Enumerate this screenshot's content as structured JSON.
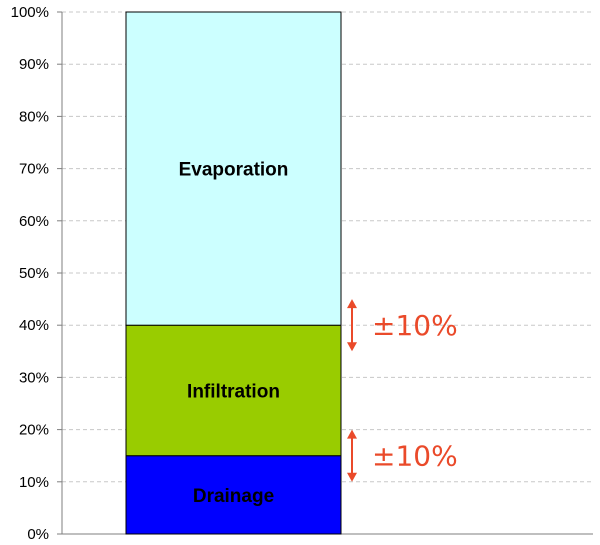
{
  "chart_data": {
    "type": "bar",
    "stacked": true,
    "categories": [
      ""
    ],
    "series": [
      {
        "name": "Drainage",
        "values": [
          15
        ],
        "color": "#0000ff"
      },
      {
        "name": "Infiltration",
        "values": [
          25
        ],
        "color": "#99cc00"
      },
      {
        "name": "Evaporation",
        "values": [
          60
        ],
        "color": "#ccffff"
      }
    ],
    "ylim": [
      0,
      100
    ],
    "yticks": [
      "0%",
      "10%",
      "20%",
      "30%",
      "40%",
      "50%",
      "60%",
      "70%",
      "80%",
      "90%",
      "100%"
    ],
    "grid": "horizontal-dashed",
    "legend": "none",
    "annotations": [
      {
        "text": "±10%",
        "at": 40,
        "range": [
          35,
          45
        ],
        "color": "#ea4a2a"
      },
      {
        "text": "±10%",
        "at": 15,
        "range": [
          10,
          20
        ],
        "color": "#ea4a2a"
      }
    ]
  }
}
